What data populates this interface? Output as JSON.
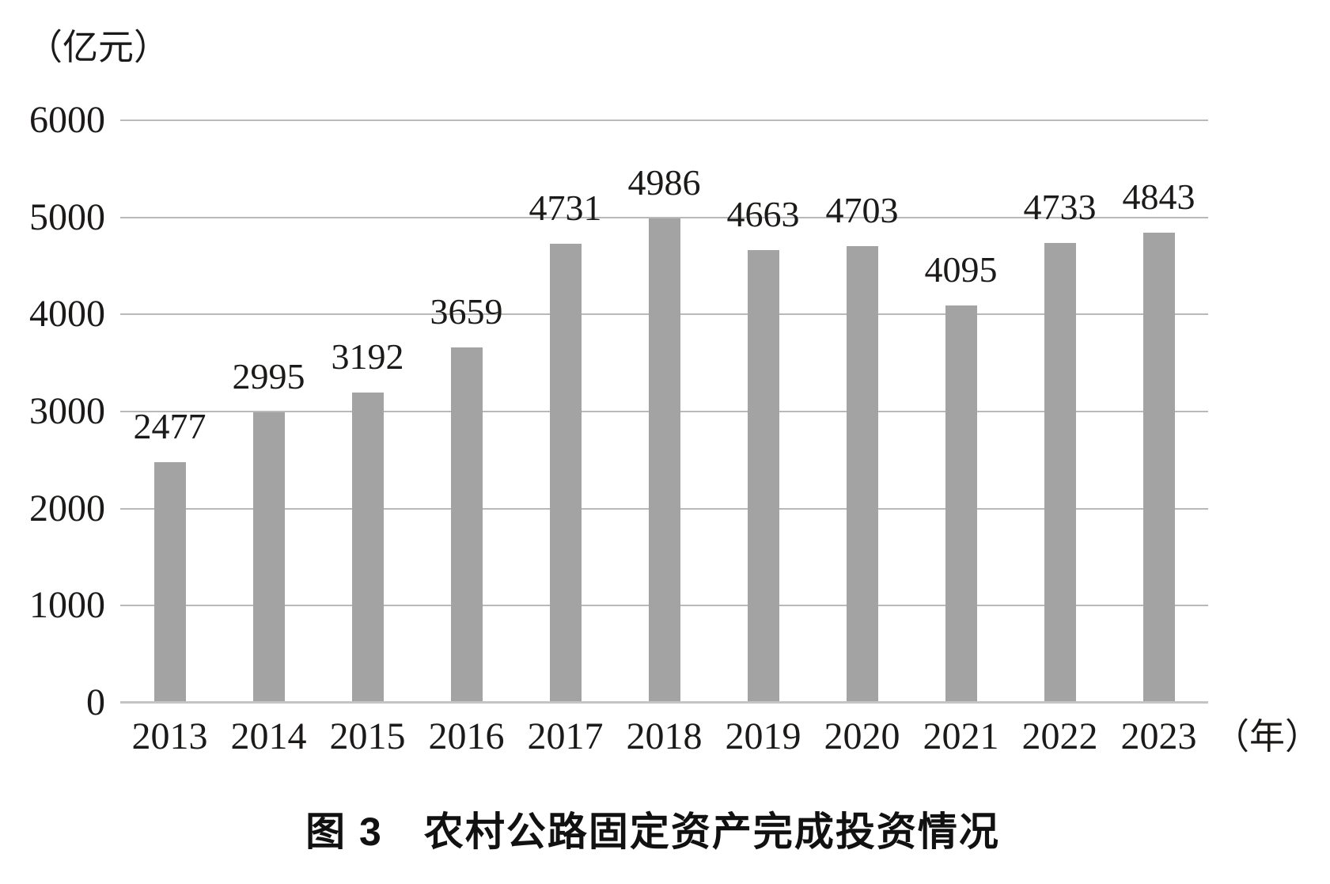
{
  "chart_data": {
    "type": "bar",
    "title": "图 3　农村公路固定资产完成投资情况",
    "y_unit_label": "（亿元）",
    "x_unit_label": "（年）",
    "categories": [
      "2013",
      "2014",
      "2015",
      "2016",
      "2017",
      "2018",
      "2019",
      "2020",
      "2021",
      "2022",
      "2023"
    ],
    "values": [
      2477,
      2995,
      3192,
      3659,
      4731,
      4986,
      4663,
      4703,
      4095,
      4733,
      4843
    ],
    "yticks": [
      6000,
      5000,
      4000,
      3000,
      2000,
      1000,
      0
    ],
    "ylim": [
      0,
      6000
    ],
    "grid": true,
    "legend": "none",
    "bar_color": "#a3a3a3",
    "gridline_color": "#b9b9b9",
    "axis_line_color": "#c4c4c4",
    "text_color": "#1c1a18"
  }
}
